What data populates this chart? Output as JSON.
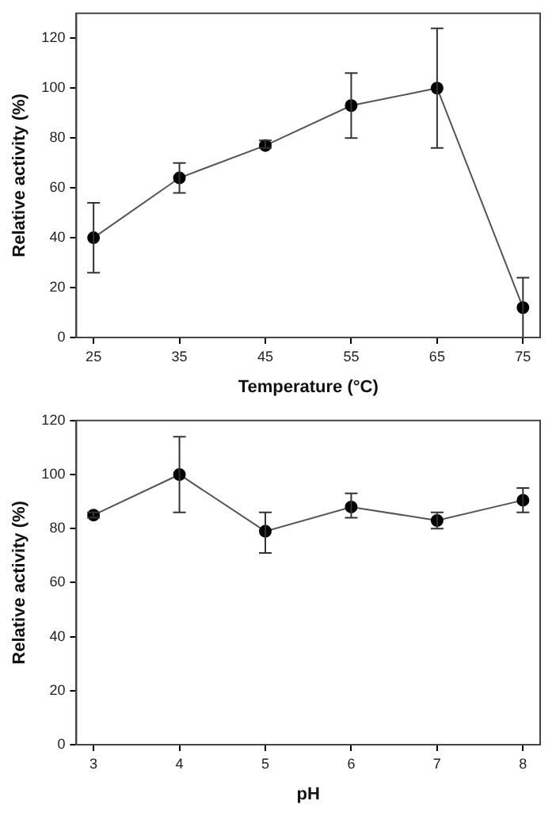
{
  "chart_data": [
    {
      "type": "line",
      "xlabel": "Temperature (°C)",
      "ylabel": "Relative activity (%)",
      "x": [
        25,
        35,
        45,
        55,
        65,
        75
      ],
      "xlim": [
        23,
        77
      ],
      "xticks": [
        25,
        35,
        45,
        55,
        65,
        75
      ],
      "ylim": [
        0,
        130
      ],
      "yticks": [
        0,
        20,
        40,
        60,
        80,
        100,
        120
      ],
      "series": [
        {
          "color": "#000000",
          "values": [
            40,
            64,
            77,
            93,
            100,
            12
          ],
          "errors": [
            [
              26,
              54
            ],
            [
              58,
              70
            ],
            [
              76,
              79
            ],
            [
              80,
              106
            ],
            [
              76,
              124
            ],
            [
              0,
              24
            ]
          ]
        }
      ],
      "marker": "circle",
      "grid": false,
      "legend": false
    },
    {
      "type": "line",
      "xlabel": "pH",
      "ylabel": "Relative activity (%)",
      "x": [
        3,
        4,
        5,
        6,
        7,
        8
      ],
      "xlim": [
        2.8,
        8.2
      ],
      "xticks": [
        3,
        4,
        5,
        6,
        7,
        8
      ],
      "ylim": [
        0,
        120
      ],
      "yticks": [
        0,
        20,
        40,
        60,
        80,
        100,
        120
      ],
      "series": [
        {
          "color": "#000000",
          "values": [
            85,
            100,
            79,
            88,
            83,
            90.5
          ],
          "errors": [
            [
              84,
              86
            ],
            [
              86,
              114
            ],
            [
              71,
              86
            ],
            [
              84,
              93
            ],
            [
              80,
              86
            ],
            [
              86,
              95
            ]
          ]
        }
      ],
      "marker": "circle",
      "grid": false,
      "legend": false
    }
  ]
}
